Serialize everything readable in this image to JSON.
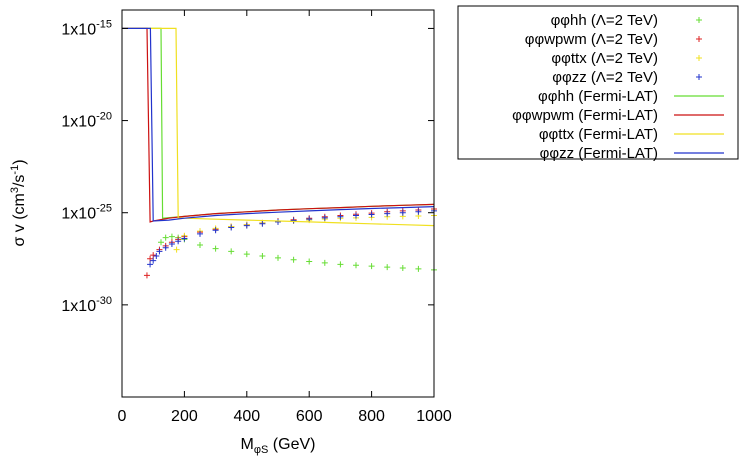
{
  "chart_data": {
    "type": "scatter",
    "title": "",
    "xlabel": "M",
    "xlabel_sub": "φS",
    "xlabel_unit": " (GeV)",
    "ylabel": "σ v (cm",
    "ylabel_sup1": "3",
    "ylabel_mid": "/s",
    "ylabel_sup2": "-1",
    "ylabel_end": ")",
    "xlim": [
      0,
      1000
    ],
    "ylim_log10": [
      -35,
      -14
    ],
    "y_scale": "log",
    "grid": false,
    "legend_position": "outside-top-right",
    "x_ticks": [
      {
        "value": 0,
        "label": "0"
      },
      {
        "value": 200,
        "label": "200"
      },
      {
        "value": 400,
        "label": "400"
      },
      {
        "value": 600,
        "label": "600"
      },
      {
        "value": 800,
        "label": "800"
      },
      {
        "value": 1000,
        "label": "1000"
      }
    ],
    "y_ticks": [
      {
        "exp": -15,
        "label": "1x10",
        "sup": "-15"
      },
      {
        "exp": -20,
        "label": "1x10",
        "sup": "-20"
      },
      {
        "exp": -25,
        "label": "1x10",
        "sup": "-25"
      },
      {
        "exp": -30,
        "label": "1x10",
        "sup": "-30"
      }
    ],
    "series": [
      {
        "name": "φφhh (Λ=2 TeV)",
        "kind": "points",
        "color": "#66dd33",
        "x": [
          125,
          140,
          160,
          180,
          200,
          250,
          300,
          350,
          400,
          450,
          500,
          550,
          600,
          650,
          700,
          750,
          800,
          850,
          900,
          950,
          1000
        ],
        "log10_y": [
          -26.6,
          -26.35,
          -26.3,
          -26.35,
          -26.45,
          -26.75,
          -26.95,
          -27.1,
          -27.25,
          -27.35,
          -27.45,
          -27.55,
          -27.65,
          -27.72,
          -27.8,
          -27.85,
          -27.9,
          -27.95,
          -28.0,
          -28.05,
          -28.1
        ]
      },
      {
        "name": "φφwpwm (Λ=2 TeV)",
        "kind": "points",
        "color": "#dd2222",
        "x": [
          80,
          90,
          100,
          120,
          140,
          160,
          180,
          200,
          250,
          300,
          350,
          400,
          450,
          500,
          550,
          600,
          650,
          700,
          750,
          800,
          850,
          900,
          950,
          1000
        ],
        "log10_y": [
          -28.4,
          -27.5,
          -27.3,
          -27.0,
          -26.8,
          -26.6,
          -26.45,
          -26.3,
          -26.05,
          -25.9,
          -25.75,
          -25.65,
          -25.55,
          -25.45,
          -25.38,
          -25.3,
          -25.22,
          -25.15,
          -25.08,
          -25.02,
          -24.95,
          -24.9,
          -24.85,
          -24.8
        ]
      },
      {
        "name": "φφttx (Λ=2 TeV)",
        "kind": "points",
        "color": "#f0e020",
        "x": [
          175,
          200,
          250,
          300,
          350,
          400,
          450,
          500,
          550,
          600,
          650,
          700,
          750,
          800,
          850,
          900,
          950,
          1000
        ],
        "log10_y": [
          -27.0,
          -26.25,
          -26.0,
          -25.85,
          -25.75,
          -25.65,
          -25.55,
          -25.5,
          -25.45,
          -25.4,
          -25.35,
          -25.3,
          -25.28,
          -25.25,
          -25.22,
          -25.2,
          -25.18,
          -25.15
        ]
      },
      {
        "name": "φφzz (Λ=2 TeV)",
        "kind": "points",
        "color": "#2233cc",
        "x": [
          90,
          100,
          110,
          120,
          140,
          160,
          180,
          200,
          250,
          300,
          350,
          400,
          450,
          500,
          550,
          600,
          650,
          700,
          750,
          800,
          850,
          900,
          950,
          1000
        ],
        "log10_y": [
          -27.8,
          -27.6,
          -27.35,
          -27.1,
          -26.9,
          -26.7,
          -26.55,
          -26.4,
          -26.15,
          -25.95,
          -25.8,
          -25.7,
          -25.6,
          -25.5,
          -25.42,
          -25.35,
          -25.28,
          -25.22,
          -25.15,
          -25.1,
          -25.05,
          -25.0,
          -24.95,
          -24.9
        ]
      },
      {
        "name": "φφhh (Fermi-LAT)",
        "kind": "line",
        "color": "#66dd33",
        "x": [
          0,
          125,
          125,
          130,
          200,
          300,
          400,
          500,
          600,
          700,
          800,
          900,
          1000
        ],
        "log10_y": [
          -15,
          -15,
          -15,
          -25.3,
          -25.2,
          -25.05,
          -24.95,
          -24.85,
          -24.78,
          -24.72,
          -24.65,
          -24.6,
          -24.55
        ]
      },
      {
        "name": "φφwpwm (Fermi-LAT)",
        "kind": "line",
        "color": "#cc1111",
        "x": [
          0,
          80,
          80,
          90,
          100,
          150,
          200,
          300,
          400,
          500,
          600,
          700,
          800,
          900,
          1000
        ],
        "log10_y": [
          -15,
          -15,
          -15,
          -25.5,
          -25.45,
          -25.3,
          -25.2,
          -25.05,
          -24.95,
          -24.85,
          -24.78,
          -24.72,
          -24.65,
          -24.6,
          -24.55
        ]
      },
      {
        "name": "φφttx (Fermi-LAT)",
        "kind": "line",
        "color": "#f0e020",
        "x": [
          0,
          173,
          173,
          180,
          200,
          300,
          400,
          500,
          600,
          700,
          800,
          900,
          1000
        ],
        "log10_y": [
          -15,
          -15,
          -15,
          -25.3,
          -25.3,
          -25.35,
          -25.4,
          -25.45,
          -25.5,
          -25.55,
          -25.6,
          -25.65,
          -25.7
        ]
      },
      {
        "name": "φφzz (Fermi-LAT)",
        "kind": "line",
        "color": "#2233cc",
        "x": [
          0,
          91,
          91,
          100,
          150,
          200,
          300,
          400,
          500,
          600,
          700,
          800,
          900,
          1000
        ],
        "log10_y": [
          -15,
          -15,
          -15,
          -25.45,
          -25.4,
          -25.3,
          -25.15,
          -25.05,
          -24.97,
          -24.9,
          -24.83,
          -24.77,
          -24.72,
          -24.67
        ]
      }
    ]
  }
}
